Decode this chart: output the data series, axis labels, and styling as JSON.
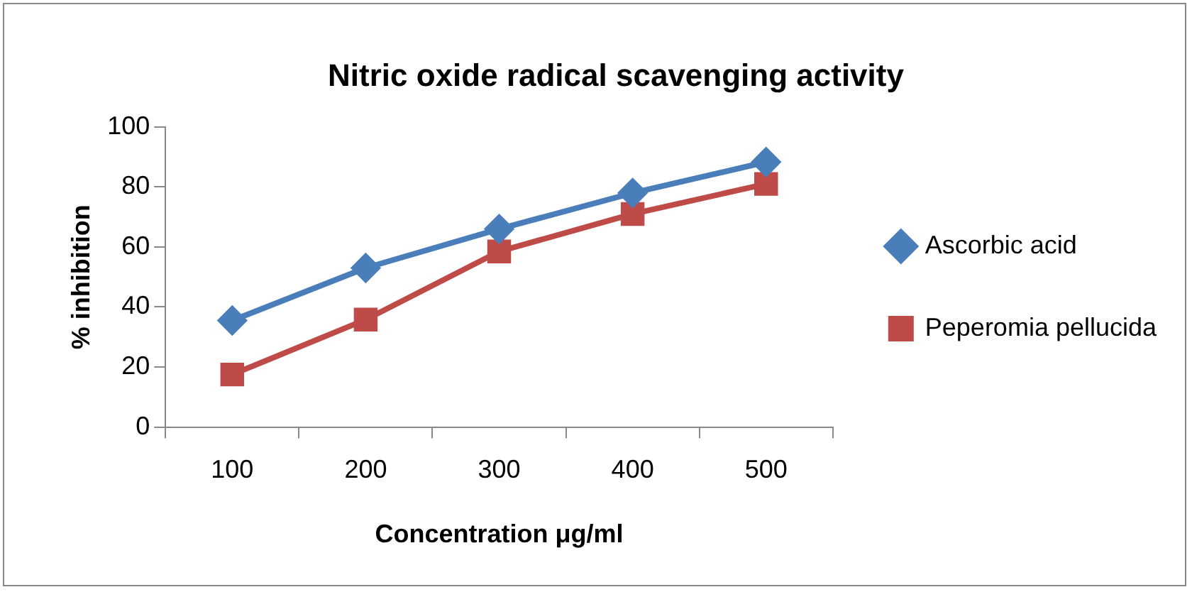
{
  "chart_data": {
    "type": "line",
    "title": "Nitric oxide radical scavenging activity",
    "xlabel": "Concentration μg/ml",
    "ylabel": "% inhibition",
    "categories": [
      "100",
      "200",
      "300",
      "400",
      "500"
    ],
    "series": [
      {
        "name": "Ascorbic acid",
        "color": "#4a7ebb",
        "marker": "diamond",
        "values": [
          35.5,
          53,
          66,
          78,
          88.3
        ]
      },
      {
        "name": "Peperomia pellucida",
        "color": "#be4b48",
        "marker": "square",
        "values": [
          17.5,
          35.8,
          58.5,
          71,
          81
        ]
      }
    ],
    "ylim": [
      0,
      100
    ],
    "yticks": [
      0,
      20,
      40,
      60,
      80,
      100
    ],
    "grid": false,
    "legend": "right",
    "line_style": "solid"
  }
}
